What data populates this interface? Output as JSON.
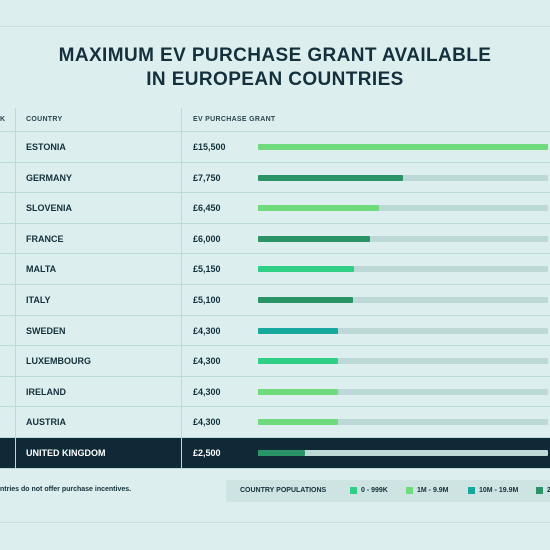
{
  "title": {
    "line1": "MAXIMUM EV PURCHASE GRANT AVAILABLE",
    "line2": "IN EUROPEAN COUNTRIES"
  },
  "columns": {
    "rank": "K",
    "country": "COUNTRY",
    "grant": "EV PURCHASE GRANT"
  },
  "colors": {
    "0-999K": "#2fcf86",
    "1M-9.9M": "#6fdb7d",
    "10M-19.9M": "#16a89c",
    "20M+": "#2a9466",
    "track": "#bcd9d8"
  },
  "chart_data": {
    "type": "bar",
    "title": "MAXIMUM EV PURCHASE GRANT AVAILABLE IN EUROPEAN COUNTRIES",
    "xlabel": "EV PURCHASE GRANT",
    "ylabel": "COUNTRY",
    "categories": [
      "ESTONIA",
      "GERMANY",
      "SLOVENIA",
      "FRANCE",
      "MALTA",
      "ITALY",
      "SWEDEN",
      "LUXEMBOURG",
      "IRELAND",
      "AUSTRIA",
      "UNITED KINGDOM"
    ],
    "values": [
      15500,
      7750,
      6450,
      6000,
      5150,
      5100,
      4300,
      4300,
      4300,
      4300,
      2500
    ],
    "labels": [
      "£15,500",
      "£7,750",
      "£6,450",
      "£6,000",
      "£5,150",
      "£5,100",
      "£4,300",
      "£4,300",
      "£4,300",
      "£4,300",
      "£2,500"
    ],
    "population_groups": [
      "1M-9.9M",
      "20M+",
      "1M-9.9M",
      "20M+",
      "0-999K",
      "20M+",
      "10M-19.9M",
      "0-999K",
      "1M-9.9M",
      "1M-9.9M",
      "20M+"
    ],
    "highlight": "UNITED KINGDOM",
    "xlim": [
      0,
      15500
    ]
  },
  "footnote": "ntries do not offer purchase incentives.",
  "legend": {
    "label": "COUNTRY POPULATIONS",
    "items": [
      {
        "text": "0 - 999K",
        "key": "0-999K"
      },
      {
        "text": "1M - 9.9M",
        "key": "1M-9.9M"
      },
      {
        "text": "10M - 19.9M",
        "key": "10M-19.9M"
      },
      {
        "text": "2",
        "key": "20M+"
      }
    ]
  }
}
